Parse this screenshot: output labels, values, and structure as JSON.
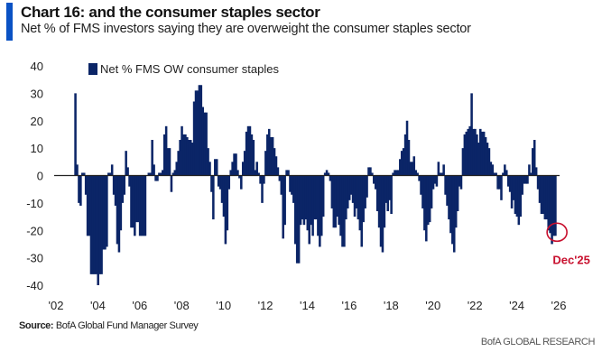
{
  "header": {
    "title": "Chart 16: and the consumer staples sector",
    "subtitle": "Net % of FMS investors saying they are overweight the consumer staples sector"
  },
  "footer": {
    "source_label": "Source:",
    "source_text": "BofA Global Fund Manager Survey",
    "brand": "BofA GLOBAL RESEARCH"
  },
  "colors": {
    "bar": "#0b2567",
    "accent": "#0a52c4",
    "annotation": "#c8102e"
  },
  "chart_data": {
    "type": "bar",
    "title": "Chart 16: and the consumer staples sector",
    "subtitle": "Net % of FMS investors saying they are overweight the consumer staples sector",
    "xlabel": "",
    "ylabel": "",
    "ylim": [
      -40,
      40
    ],
    "yticks": [
      40,
      30,
      20,
      10,
      0,
      -10,
      -20,
      -30,
      -40
    ],
    "xlim": [
      2002,
      2026
    ],
    "xticks": [
      2002,
      2004,
      2006,
      2008,
      2010,
      2012,
      2014,
      2016,
      2018,
      2020,
      2022,
      2024,
      2026
    ],
    "xtick_labels": [
      "'02",
      "'04",
      "'06",
      "'08",
      "'10",
      "'12",
      "'14",
      "'16",
      "'18",
      "'20",
      "'22",
      "'24",
      "'26"
    ],
    "grid": false,
    "legend": {
      "position": "top-center",
      "entries": [
        "Net % FMS OW consumer staples"
      ]
    },
    "frequency": "monthly",
    "start": "2002-12",
    "end": "2025-12",
    "series": [
      {
        "name": "Net % FMS OW consumer staples",
        "values": [
          30,
          4,
          -10,
          -11,
          1,
          1,
          -7,
          -22,
          -22,
          -36,
          -36,
          -36,
          -36,
          -40,
          -36,
          -36,
          -27,
          -27,
          -26,
          1,
          1,
          4,
          -7,
          -11,
          -25,
          -28,
          -20,
          -10,
          -7,
          9,
          3,
          -4,
          -19,
          -19,
          -22,
          -17,
          -17,
          -22,
          -22,
          -22,
          -22,
          0,
          1,
          1,
          13,
          4,
          -2,
          -2,
          1,
          1,
          2,
          15,
          18,
          10,
          10,
          -6,
          1,
          2,
          5,
          9,
          13,
          18,
          15,
          15,
          14,
          13,
          13,
          12,
          27,
          31,
          31,
          33,
          33,
          25,
          23,
          23,
          10,
          5,
          -6,
          -16,
          6,
          6,
          -4,
          -5,
          -10,
          -15,
          -25,
          -20,
          -5,
          2,
          5,
          8,
          8,
          2,
          -1,
          -5,
          5,
          9,
          16,
          18,
          18,
          15,
          13,
          2,
          5,
          1,
          -3,
          -10,
          -3,
          9,
          15,
          17,
          14,
          14,
          10,
          7,
          3,
          -2,
          -7,
          -23,
          -18,
          2,
          2,
          -6,
          -7,
          -10,
          -25,
          -32,
          -32,
          -18,
          -16,
          -18,
          -16,
          -20,
          -25,
          -18,
          -22,
          -16,
          -16,
          -22,
          -26,
          -22,
          -15,
          1,
          2,
          1,
          -2,
          -12,
          -19,
          -19,
          -15,
          -18,
          -22,
          -26,
          -26,
          -16,
          -12,
          -9,
          -7,
          -10,
          -15,
          -12,
          -16,
          -20,
          -26,
          -17,
          -12,
          -8,
          3,
          3,
          1,
          -3,
          -5,
          -13,
          -19,
          -26,
          -28,
          -19,
          -10,
          -13,
          -9,
          -14,
          1,
          2,
          2,
          2,
          6,
          9,
          10,
          15,
          20,
          13,
          5,
          5,
          7,
          2,
          1,
          -2,
          -7,
          -12,
          -20,
          -24,
          -18,
          -17,
          -12,
          -5,
          -3,
          -4,
          5,
          1,
          1,
          4,
          -7,
          -11,
          -16,
          -21,
          -25,
          -28,
          -19,
          -13,
          -4,
          -5,
          10,
          15,
          16,
          17,
          18,
          30,
          17,
          17,
          15,
          12,
          17,
          16,
          16,
          14,
          12,
          10,
          5,
          4,
          1,
          1,
          -5,
          -5,
          -9,
          1,
          4,
          2,
          -4,
          -6,
          -12,
          -9,
          -14,
          -15,
          -18,
          -15,
          -7,
          -3,
          -3,
          -3,
          4,
          1,
          10,
          13,
          3,
          -5,
          -10,
          -14,
          -14,
          -16,
          -16,
          -20,
          -21,
          -25,
          -22,
          -22
        ]
      }
    ],
    "annotations": [
      {
        "text": "Dec'25",
        "target": "2025-12",
        "style": "red-circle"
      }
    ]
  }
}
